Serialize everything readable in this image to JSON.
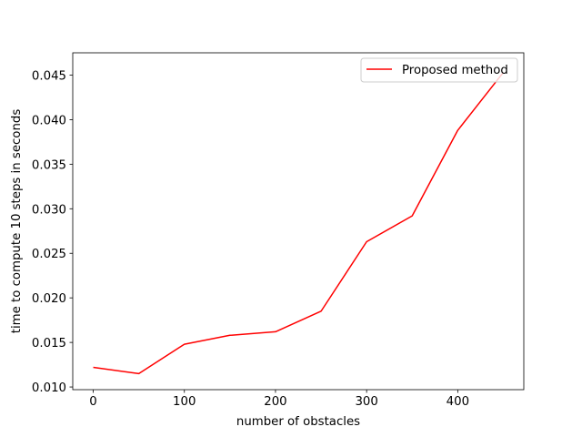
{
  "chart_data": {
    "type": "line",
    "title": "",
    "xlabel": "number of obstacles",
    "ylabel": "time to compute 10 steps in seconds",
    "xlim": [
      -22.5,
      472.5
    ],
    "ylim": [
      0.0097,
      0.0475
    ],
    "xticks": [
      0,
      100,
      200,
      300,
      400
    ],
    "xtick_labels": [
      "0",
      "100",
      "200",
      "300",
      "400"
    ],
    "yticks": [
      0.01,
      0.015,
      0.02,
      0.025,
      0.03,
      0.035,
      0.04,
      0.045
    ],
    "ytick_labels": [
      "0.010",
      "0.015",
      "0.020",
      "0.025",
      "0.030",
      "0.035",
      "0.040",
      "0.045"
    ],
    "grid": false,
    "legend_position": "top-right",
    "series": [
      {
        "name": "Proposed method",
        "color": "#ff0000",
        "x": [
          0,
          50,
          100,
          150,
          200,
          250,
          300,
          350,
          400,
          450
        ],
        "y": [
          0.0122,
          0.0115,
          0.0148,
          0.0158,
          0.0162,
          0.0185,
          0.0263,
          0.0292,
          0.0388,
          0.0453
        ]
      }
    ]
  }
}
